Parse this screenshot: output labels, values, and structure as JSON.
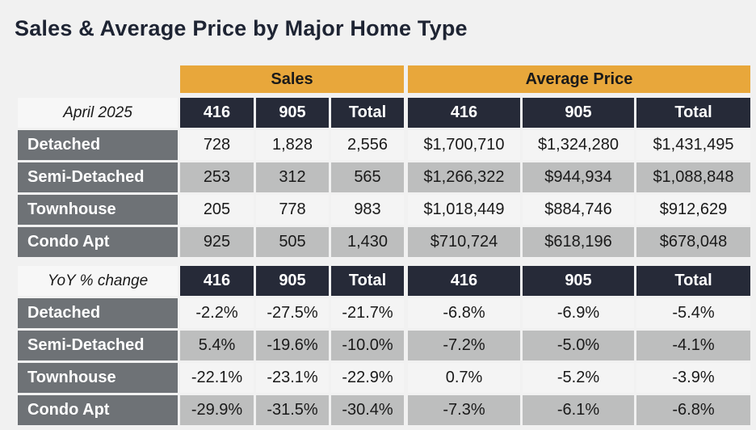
{
  "title": "Sales & Average Price by Major Home Type",
  "group_headers": [
    "Sales",
    "Average Price"
  ],
  "chart_data": {
    "type": "table",
    "tables": [
      {
        "label": "April 2025",
        "columns": [
          "416",
          "905",
          "Total",
          "416",
          "905",
          "Total"
        ],
        "rows": [
          {
            "label": "Detached",
            "values": [
              "728",
              "1,828",
              "2,556",
              "$1,700,710",
              "$1,324,280",
              "$1,431,495"
            ]
          },
          {
            "label": "Semi-Detached",
            "values": [
              "253",
              "312",
              "565",
              "$1,266,322",
              "$944,934",
              "$1,088,848"
            ]
          },
          {
            "label": "Townhouse",
            "values": [
              "205",
              "778",
              "983",
              "$1,018,449",
              "$884,746",
              "$912,629"
            ]
          },
          {
            "label": "Condo Apt",
            "values": [
              "925",
              "505",
              "1,430",
              "$710,724",
              "$618,196",
              "$678,048"
            ]
          }
        ]
      },
      {
        "label": "YoY % change",
        "columns": [
          "416",
          "905",
          "Total",
          "416",
          "905",
          "Total"
        ],
        "rows": [
          {
            "label": "Detached",
            "values": [
              "-2.2%",
              "-27.5%",
              "-21.7%",
              "-6.8%",
              "-6.9%",
              "-5.4%"
            ]
          },
          {
            "label": "Semi-Detached",
            "values": [
              "5.4%",
              "-19.6%",
              "-10.0%",
              "-7.2%",
              "-5.0%",
              "-4.1%"
            ]
          },
          {
            "label": "Townhouse",
            "values": [
              "-22.1%",
              "-23.1%",
              "-22.9%",
              "0.7%",
              "-5.2%",
              "-3.9%"
            ]
          },
          {
            "label": "Condo Apt",
            "values": [
              "-29.9%",
              "-31.5%",
              "-30.4%",
              "-7.3%",
              "-6.1%",
              "-6.8%"
            ]
          }
        ]
      }
    ]
  }
}
